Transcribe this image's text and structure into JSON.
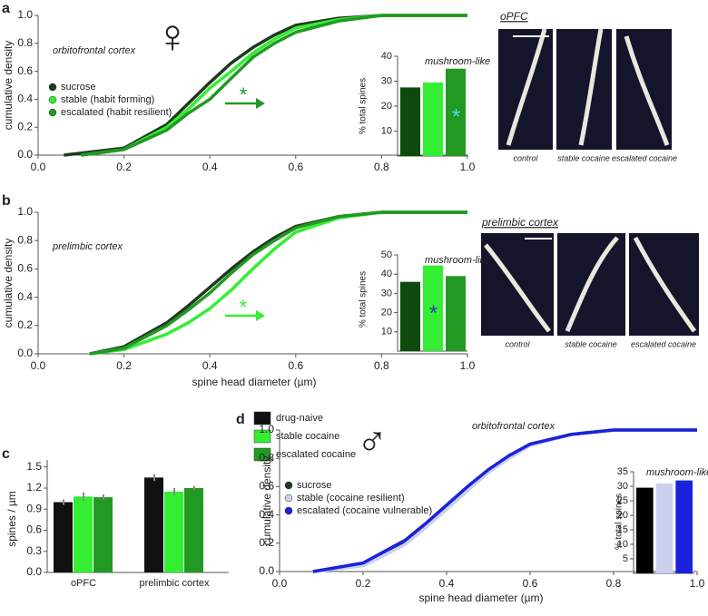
{
  "figure": {
    "panel_labels": [
      "a",
      "b",
      "c",
      "d"
    ],
    "symbols": [
      "♀",
      "♂"
    ],
    "images": [
      {
        "title": "oPFC",
        "captions": [
          "control",
          "stable cocaine",
          "escalated cocaine"
        ]
      },
      {
        "title": "prelimbic cortex",
        "captions": [
          "control",
          "stable cocaine",
          "escalated cocaine"
        ]
      }
    ]
  },
  "chart_data": [
    {
      "type": "line",
      "ylabel": "cumulative density",
      "annotations": [
        "orbitofrontal cortex",
        "*"
      ],
      "legend": "upper left",
      "xlim": [
        0,
        1
      ],
      "ylim": [
        0,
        1
      ],
      "xticks": [
        {
          "value": 0,
          "label": "0.0"
        },
        0.2,
        0.4,
        0.6,
        0.8,
        {
          "value": 1,
          "label": "1.0"
        }
      ],
      "yticks": [
        {
          "value": 0,
          "label": "0.0"
        },
        0.2,
        0.4,
        0.6,
        0.8,
        {
          "value": 1,
          "label": "1.0"
        }
      ],
      "series": [
        {
          "name": "sucrose",
          "color": "#1e3a1e",
          "x": [
            0.06,
            0.2,
            0.3,
            0.35,
            0.4,
            0.45,
            0.5,
            0.55,
            0.6,
            0.7,
            0.8,
            1.0
          ],
          "values": [
            0,
            0.05,
            0.22,
            0.37,
            0.52,
            0.66,
            0.77,
            0.86,
            0.93,
            0.98,
            1,
            1
          ]
        },
        {
          "name": "stable (habit forming)",
          "color": "#33ee33",
          "x": [
            0.1,
            0.2,
            0.3,
            0.35,
            0.4,
            0.45,
            0.5,
            0.55,
            0.6,
            0.7,
            0.8,
            1.0
          ],
          "values": [
            0,
            0.04,
            0.2,
            0.33,
            0.48,
            0.6,
            0.73,
            0.83,
            0.91,
            0.97,
            1,
            1
          ]
        },
        {
          "name": "escalated (habit resilient)",
          "color": "#229922",
          "x": [
            0.1,
            0.2,
            0.3,
            0.35,
            0.4,
            0.45,
            0.5,
            0.55,
            0.6,
            0.7,
            0.8,
            1.0
          ],
          "values": [
            0,
            0.04,
            0.18,
            0.3,
            0.4,
            0.55,
            0.7,
            0.8,
            0.88,
            0.96,
            1,
            1
          ]
        }
      ]
    },
    {
      "type": "bar",
      "title": "mushroom-like",
      "ylabel": "% total spines",
      "annotations": [
        "*"
      ],
      "ylim": [
        0,
        40
      ],
      "yticks": [
        10,
        20,
        30,
        40
      ],
      "colors": [
        "#0d4a0d",
        "#33ee33",
        "#229922"
      ],
      "values": [
        27.5,
        29.5,
        35
      ]
    },
    {
      "type": "line",
      "ylabel": "cumulative density",
      "xlabel": "spine head diameter (µm)",
      "annotations": [
        "prelimbic cortex",
        "*"
      ],
      "xlim": [
        0,
        1
      ],
      "ylim": [
        0,
        1
      ],
      "xticks": [
        {
          "value": 0,
          "label": "0.0"
        },
        0.2,
        0.4,
        0.6,
        0.8,
        {
          "value": 1,
          "label": "1.0"
        }
      ],
      "yticks": [
        {
          "value": 0,
          "label": "0.0"
        },
        0.2,
        0.4,
        0.6,
        0.8,
        {
          "value": 1,
          "label": "1.0"
        }
      ],
      "series": [
        {
          "color": "#1e3a1e",
          "x": [
            0.12,
            0.2,
            0.3,
            0.35,
            0.4,
            0.45,
            0.5,
            0.55,
            0.6,
            0.7,
            0.8,
            1.0
          ],
          "values": [
            0,
            0.05,
            0.22,
            0.34,
            0.47,
            0.6,
            0.72,
            0.82,
            0.9,
            0.97,
            1,
            1
          ]
        },
        {
          "color": "#33ee33",
          "x": [
            0.12,
            0.2,
            0.3,
            0.35,
            0.4,
            0.45,
            0.5,
            0.55,
            0.6,
            0.7,
            0.8,
            1.0
          ],
          "values": [
            0,
            0.03,
            0.14,
            0.22,
            0.32,
            0.45,
            0.6,
            0.74,
            0.86,
            0.96,
            1,
            1
          ]
        },
        {
          "color": "#229922",
          "x": [
            0.12,
            0.2,
            0.3,
            0.35,
            0.4,
            0.45,
            0.5,
            0.55,
            0.6,
            0.7,
            0.8,
            1.0
          ],
          "values": [
            0,
            0.04,
            0.2,
            0.31,
            0.43,
            0.57,
            0.7,
            0.8,
            0.89,
            0.97,
            1,
            1
          ]
        }
      ]
    },
    {
      "type": "bar",
      "title": "mushroom-like",
      "ylabel": "% total spines",
      "annotations": [
        "*"
      ],
      "ylim": [
        0,
        50
      ],
      "yticks": [
        10,
        20,
        30,
        40,
        50
      ],
      "colors": [
        "#0d4a0d",
        "#33ee33",
        "#229922"
      ],
      "values": [
        36,
        44.5,
        39
      ]
    },
    {
      "type": "grouped_bar",
      "ylabel": "spines / µm",
      "categories": [
        "oPFC",
        "prelimbic cortex"
      ],
      "ylim": [
        0,
        1.6
      ],
      "yticks": [
        {
          "value": 0,
          "label": "0.0"
        },
        0.3,
        0.6,
        0.9,
        1.2,
        1.5
      ],
      "series": [
        {
          "name": "drug-naive",
          "color": "#111111",
          "values": [
            1.0,
            1.35
          ],
          "errors": [
            0.04,
            0.05
          ]
        },
        {
          "name": "stable cocaine",
          "color": "#33ee33",
          "values": [
            1.08,
            1.15
          ],
          "errors": [
            0.06,
            0.05
          ]
        },
        {
          "name": "escalated cocaine",
          "color": "#229922",
          "values": [
            1.07,
            1.2
          ],
          "errors": [
            0.04,
            0.03
          ]
        }
      ]
    },
    {
      "type": "line",
      "ylabel": "cumulative density",
      "xlabel": "spine head diameter (µm)",
      "annotations": [
        "orbitofrontal cortex"
      ],
      "xlim": [
        0,
        1
      ],
      "ylim": [
        0,
        1
      ],
      "xticks": [
        {
          "value": 0,
          "label": "0.0"
        },
        0.2,
        0.4,
        0.6,
        0.8,
        {
          "value": 1,
          "label": "1.0"
        }
      ],
      "yticks": [
        {
          "value": 0,
          "label": "0.0"
        },
        0.2,
        0.4,
        0.6,
        0.8,
        {
          "value": 1,
          "label": "1.0"
        }
      ],
      "series": [
        {
          "name": "sucrose",
          "color": "#1e3a1e",
          "x": [
            0.08,
            0.2,
            0.3,
            0.35,
            0.4,
            0.45,
            0.5,
            0.55,
            0.6,
            0.7,
            0.8,
            1.0
          ],
          "values": [
            0,
            0.05,
            0.2,
            0.32,
            0.45,
            0.58,
            0.7,
            0.81,
            0.9,
            0.97,
            1,
            1
          ]
        },
        {
          "name": "stable (cocaine resilient)",
          "color": "#ccd0ee",
          "x": [
            0.08,
            0.2,
            0.3,
            0.35,
            0.4,
            0.45,
            0.5,
            0.55,
            0.6,
            0.7,
            0.8,
            1.0
          ],
          "values": [
            0,
            0.04,
            0.19,
            0.31,
            0.44,
            0.57,
            0.7,
            0.8,
            0.89,
            0.97,
            1,
            1
          ]
        },
        {
          "name": "escalated (cocaine vulnerable)",
          "color": "#1a22dd",
          "x": [
            0.08,
            0.2,
            0.3,
            0.35,
            0.4,
            0.45,
            0.5,
            0.55,
            0.6,
            0.7,
            0.8,
            1.0
          ],
          "values": [
            0,
            0.06,
            0.22,
            0.34,
            0.47,
            0.6,
            0.72,
            0.82,
            0.9,
            0.97,
            1,
            1
          ]
        }
      ]
    },
    {
      "type": "bar",
      "title": "mushroom-like",
      "ylabel": "% total spines",
      "ylim": [
        0,
        35
      ],
      "yticks": [
        5,
        10,
        15,
        20,
        25,
        30,
        35
      ],
      "colors": [
        "#000000",
        "#ccd0ee",
        "#1a22dd"
      ],
      "values": [
        29.5,
        31,
        32
      ]
    }
  ]
}
